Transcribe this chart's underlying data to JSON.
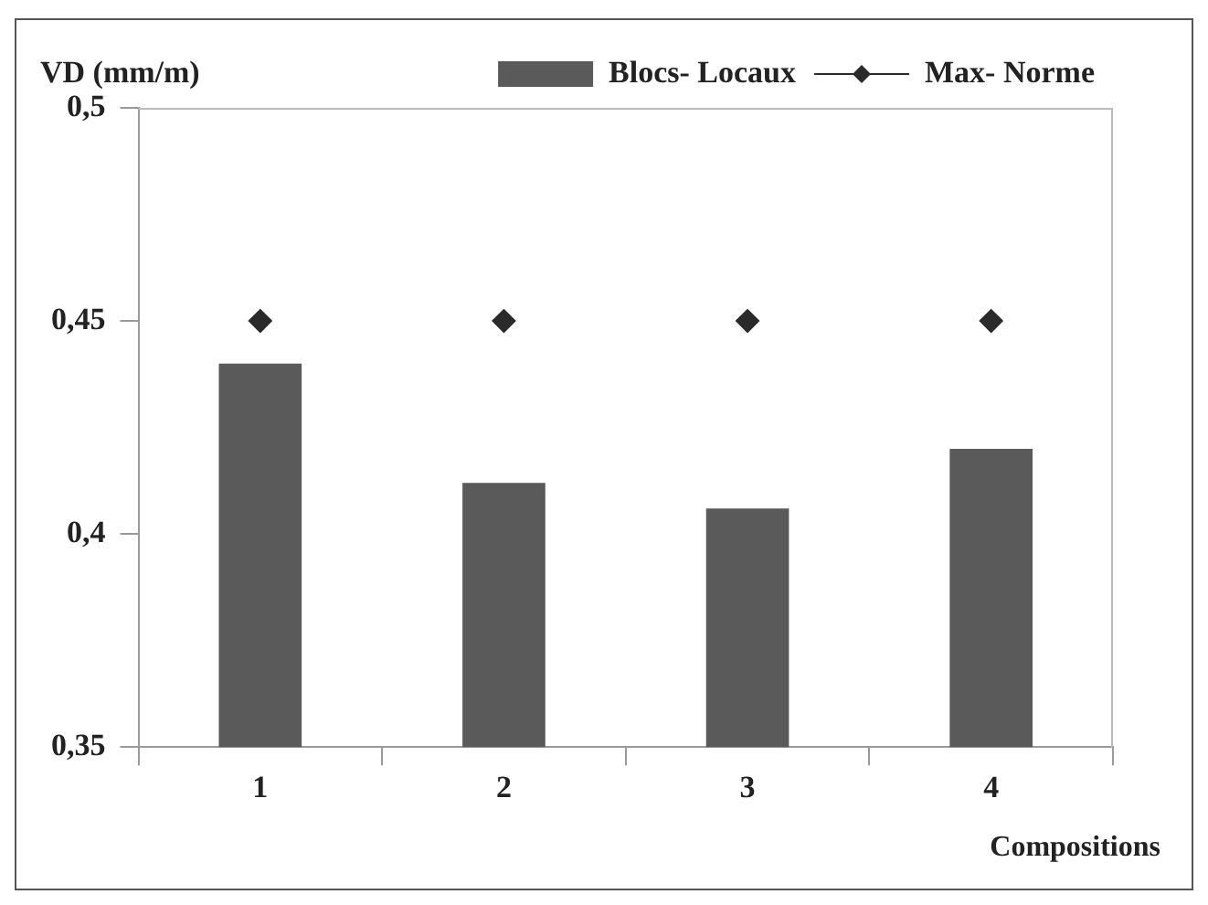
{
  "chart_data": {
    "type": "bar",
    "xlabel": "Compositions",
    "ylabel": "VD (mm/m)",
    "categories": [
      "1",
      "2",
      "3",
      "4"
    ],
    "series": [
      {
        "name": "Blocs- Locaux",
        "color": "#5a5a5a",
        "values": [
          0.44,
          0.412,
          0.406,
          0.42
        ]
      },
      {
        "name": "Max- Norme",
        "type": "scatter",
        "color": "#2a2a2a",
        "x": [
          "1",
          "2",
          "3",
          "4"
        ],
        "values": [
          0.45,
          0.45,
          0.45,
          0.45
        ],
        "marker": "diamond"
      }
    ],
    "ylim": [
      0.35,
      0.5
    ],
    "yticks": [
      {
        "value": 0.35,
        "label": "0,35"
      },
      {
        "value": 0.4,
        "label": "0,4"
      },
      {
        "value": 0.45,
        "label": "0,45"
      },
      {
        "value": 0.5,
        "label": "0,5"
      }
    ],
    "grid": false,
    "legend": "top right"
  }
}
